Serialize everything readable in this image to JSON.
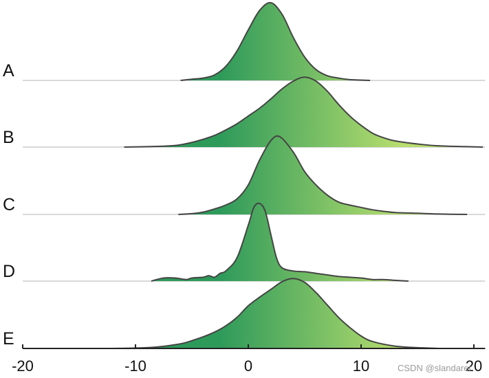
{
  "chart_data": {
    "type": "ridgeline",
    "categories": [
      "A",
      "B",
      "C",
      "D",
      "E"
    ],
    "xlim": [
      -20,
      21
    ],
    "xticks": [
      -20,
      -10,
      0,
      10,
      20
    ],
    "grid": false,
    "color_gradient": {
      "start": "#2e9a5a",
      "end": "#b7dd6e"
    },
    "line_color": "#444444",
    "baseline_color": "#d9d9d9",
    "series": [
      {
        "name": "A",
        "x": [
          -6,
          -5,
          -4,
          -3,
          -2,
          -1,
          0,
          1,
          2,
          3,
          4,
          5,
          6,
          7,
          8,
          9,
          10.8
        ],
        "y": [
          0.0,
          0.015,
          0.03,
          0.07,
          0.18,
          0.38,
          0.65,
          0.9,
          1.0,
          0.85,
          0.55,
          0.3,
          0.14,
          0.06,
          0.03,
          0.01,
          0.0
        ]
      },
      {
        "name": "B",
        "x": [
          -11,
          -9,
          -7,
          -6,
          -5,
          -4,
          -3,
          -2,
          -1,
          0,
          1,
          2,
          3,
          4,
          5,
          6,
          7,
          8,
          9,
          10,
          11,
          12,
          13,
          15,
          17,
          20.8
        ],
        "y": [
          0.0,
          0.005,
          0.015,
          0.03,
          0.06,
          0.1,
          0.15,
          0.22,
          0.3,
          0.4,
          0.5,
          0.62,
          0.75,
          0.85,
          0.9,
          0.85,
          0.72,
          0.55,
          0.4,
          0.28,
          0.18,
          0.12,
          0.08,
          0.04,
          0.015,
          0.0
        ]
      },
      {
        "name": "C",
        "x": [
          -6.2,
          -5,
          -4,
          -3,
          -2,
          -1,
          0,
          1,
          2,
          2.8,
          4,
          5,
          6,
          7,
          8,
          9,
          10,
          11,
          12,
          13,
          15,
          17,
          19.4
        ],
        "y": [
          0.0,
          0.01,
          0.03,
          0.07,
          0.12,
          0.2,
          0.38,
          0.7,
          0.95,
          1.0,
          0.8,
          0.55,
          0.38,
          0.25,
          0.16,
          0.12,
          0.09,
          0.06,
          0.04,
          0.025,
          0.015,
          0.005,
          0.0
        ]
      },
      {
        "name": "D",
        "x": [
          -8.6,
          -7.5,
          -6.5,
          -5.5,
          -5,
          -4,
          -3.5,
          -3,
          -2.5,
          -2,
          -1,
          0,
          0.5,
          1,
          1.5,
          2,
          2.5,
          3,
          4,
          5,
          6,
          7,
          8,
          9,
          10,
          11,
          12,
          13,
          14.2
        ],
        "y": [
          0.0,
          0.04,
          0.04,
          0.02,
          0.04,
          0.05,
          0.07,
          0.05,
          0.1,
          0.13,
          0.3,
          0.72,
          0.95,
          1.0,
          0.9,
          0.6,
          0.3,
          0.17,
          0.13,
          0.12,
          0.1,
          0.08,
          0.06,
          0.05,
          0.04,
          0.02,
          0.02,
          0.01,
          0.0
        ]
      },
      {
        "name": "E",
        "x": [
          -12,
          -10,
          -8,
          -6,
          -5,
          -4,
          -3,
          -2,
          -1,
          0,
          1,
          2,
          3,
          4,
          5,
          6,
          7,
          8,
          9,
          10,
          11,
          13,
          15,
          17
        ],
        "y": [
          0.0,
          0.005,
          0.02,
          0.06,
          0.1,
          0.15,
          0.21,
          0.29,
          0.4,
          0.55,
          0.66,
          0.76,
          0.86,
          0.9,
          0.85,
          0.72,
          0.56,
          0.4,
          0.27,
          0.16,
          0.09,
          0.03,
          0.01,
          0.0
        ]
      }
    ]
  },
  "watermark": "CSDN @slandarer"
}
